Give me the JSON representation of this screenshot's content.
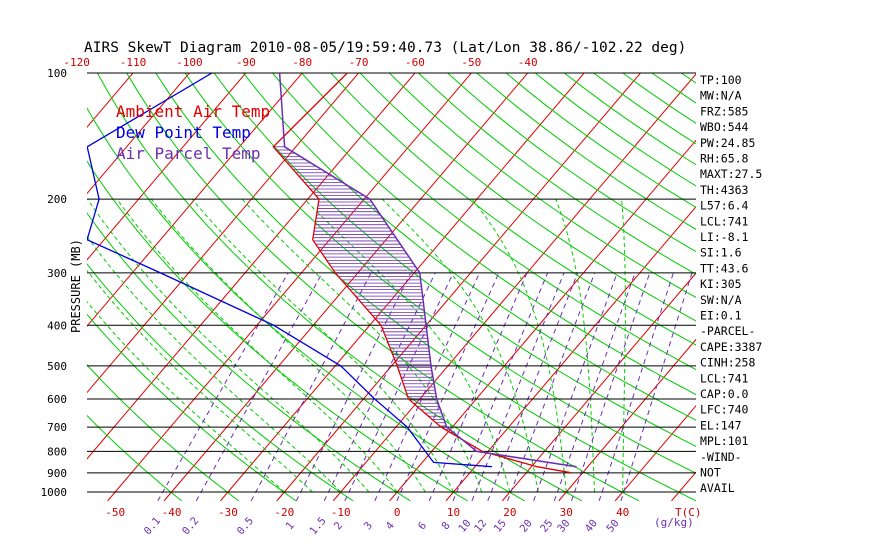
{
  "chart_data": {
    "type": "skew-t",
    "title": "AIRS SkewT Diagram 2010-08-05/19:59:40.73 (Lat/Lon 38.86/-102.22 deg)",
    "ylabel": "PRESSURE (MB)",
    "xlabel": "T(C)",
    "mixing_ratio_unit": "(g/kg)",
    "y_scale": "log",
    "ylim": [
      1000,
      100
    ],
    "xlim_bottom": [
      -55,
      53
    ],
    "pressure_ticks": [
      100,
      200,
      300,
      400,
      500,
      600,
      700,
      800,
      900,
      1000
    ],
    "temp_ticks_top": [
      -120,
      -110,
      -100,
      -90,
      -80,
      -70,
      -60,
      -50,
      -40
    ],
    "temp_ticks_bottom": [
      -50,
      -40,
      -30,
      -20,
      -10,
      0,
      10,
      20,
      30,
      40
    ],
    "mixing_ratio_ticks": [
      "0.1",
      "0.2",
      "0.5",
      "1",
      "1.5",
      "2",
      "3",
      "4",
      "6",
      "8",
      "10",
      "12",
      "15",
      "20",
      "25",
      "30",
      "40",
      "50"
    ],
    "legend": [
      {
        "label": "Ambient Air Temp",
        "color": "#e00000"
      },
      {
        "label": "Dew Point Temp",
        "color": "#0000e0"
      },
      {
        "label": "Air Parcel Temp",
        "color": "#6b2fb0"
      }
    ],
    "series": [
      {
        "name": "Ambient Air Temp",
        "points": [
          [
            100,
            -72
          ],
          [
            150,
            -74
          ],
          [
            200,
            -58
          ],
          [
            250,
            -53
          ],
          [
            300,
            -44
          ],
          [
            400,
            -28
          ],
          [
            500,
            -19
          ],
          [
            600,
            -12
          ],
          [
            700,
            -2
          ],
          [
            800,
            9
          ],
          [
            870,
            21
          ],
          [
            900,
            28
          ]
        ]
      },
      {
        "name": "Dew Point Temp",
        "points": [
          [
            100,
            -96
          ],
          [
            150,
            -107
          ],
          [
            200,
            -97
          ],
          [
            250,
            -93
          ],
          [
            300,
            -75
          ],
          [
            400,
            -47
          ],
          [
            500,
            -29
          ],
          [
            600,
            -18
          ],
          [
            700,
            -8
          ],
          [
            850,
            2
          ],
          [
            870,
            13
          ]
        ]
      },
      {
        "name": "Air Parcel Temp",
        "points": [
          [
            100,
            -84
          ],
          [
            150,
            -72
          ],
          [
            200,
            -49
          ],
          [
            250,
            -38
          ],
          [
            300,
            -29
          ],
          [
            400,
            -20
          ],
          [
            500,
            -13
          ],
          [
            600,
            -7
          ],
          [
            700,
            -1
          ],
          [
            800,
            8
          ],
          [
            870,
            28
          ]
        ]
      }
    ],
    "indices": [
      "TP:100",
      "MW:N/A",
      "FRZ:585",
      "WBO:544",
      "PW:24.85",
      "RH:65.8",
      "MAXT:27.5",
      "TH:4363",
      "L57:6.4",
      "LCL:741",
      "LI:-8.1",
      "SI:1.6",
      "TT:43.6",
      "KI:305",
      "SW:N/A",
      "EI:0.1",
      "-PARCEL-",
      "CAPE:3387",
      "CINH:258",
      "LCL:741",
      "CAP:0.0",
      "LFC:740",
      "EL:147",
      "MPL:101",
      "-WIND-",
      "NOT",
      "AVAIL"
    ],
    "colors": {
      "isotherm": "#e00000",
      "dry_adiabat": "#00cc00",
      "moist_adiabat": "#00cc00",
      "mixing_ratio": "#6a2fb0",
      "isobar": "#000000",
      "cape_hatch": "#6b2fb0"
    }
  }
}
